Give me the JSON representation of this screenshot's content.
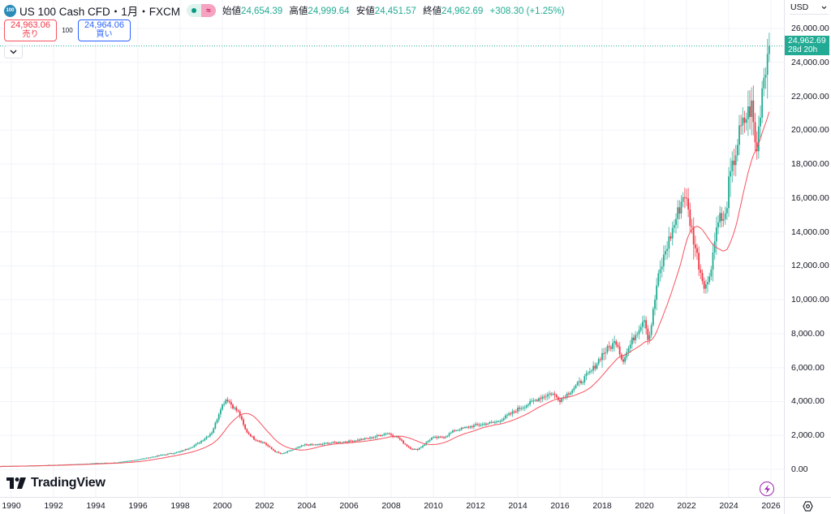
{
  "header": {
    "symbol_logo": "100",
    "title": "US 100 Cash CFD・1月・FXCM",
    "ohlc": {
      "open_label": "始値",
      "open": "24,654.39",
      "high_label": "高値",
      "high": "24,999.64",
      "low_label": "安値",
      "low": "24,451.57",
      "close_label": "終値",
      "close": "24,962.69",
      "change": "+308.30 (+1.25%)"
    },
    "status_icon_1": "market-open-dot-icon",
    "status_icon_2": "delayed-data-icon",
    "status_2_glyph": "≈"
  },
  "trade": {
    "sell_price": "24,963.06",
    "sell_label": "売り",
    "spread": "100",
    "buy_price": "24,964.06",
    "buy_label": "買い"
  },
  "price_axis": {
    "currency": "USD",
    "labels": [
      "26,000.00",
      "24,000.00",
      "22,000.00",
      "20,000.00",
      "18,000.00",
      "16,000.00",
      "14,000.00",
      "12,000.00",
      "10,000.00",
      "8,000.00",
      "6,000.00",
      "4,000.00",
      "2,000.00",
      "0.00"
    ],
    "last_price": "24,962.69",
    "countdown": "28d 20h"
  },
  "time_axis": {
    "labels": [
      "1990",
      "1992",
      "1994",
      "1996",
      "1998",
      "2000",
      "2002",
      "2004",
      "2006",
      "2008",
      "2010",
      "2012",
      "2014",
      "2016",
      "2018",
      "2020",
      "2022",
      "2024",
      "2026"
    ]
  },
  "branding": {
    "logo_text": "TradingView"
  },
  "colors": {
    "up": "#22ab94",
    "down": "#f23645",
    "ma": "#f7525f",
    "grid": "#f0f3fa",
    "last_line": "#22ab94"
  },
  "chart_data": {
    "type": "candlestick",
    "title": "US 100 Cash CFD・1月・FXCM",
    "interval": "1 month",
    "ylim": [
      -1000,
      27000
    ],
    "xlim": [
      1989.5,
      2026.6
    ],
    "yticks": [
      0,
      2000,
      4000,
      6000,
      8000,
      10000,
      12000,
      14000,
      16000,
      18000,
      20000,
      22000,
      24000,
      26000
    ],
    "xticks": [
      1990,
      1992,
      1994,
      1996,
      1998,
      2000,
      2002,
      2004,
      2006,
      2008,
      2010,
      2012,
      2014,
      2016,
      2018,
      2020,
      2022,
      2024,
      2026
    ],
    "last_value": 24962.69,
    "anchor_points": [
      [
        1989.0,
        170
      ],
      [
        1990.0,
        200
      ],
      [
        1991.0,
        220
      ],
      [
        1992.0,
        260
      ],
      [
        1993.0,
        300
      ],
      [
        1994.0,
        360
      ],
      [
        1995.0,
        400
      ],
      [
        1996.0,
        580
      ],
      [
        1997.0,
        820
      ],
      [
        1998.0,
        1050
      ],
      [
        1998.8,
        1500
      ],
      [
        1999.5,
        2200
      ],
      [
        1999.9,
        3600
      ],
      [
        2000.2,
        4200
      ],
      [
        2000.5,
        3700
      ],
      [
        2000.8,
        3300
      ],
      [
        2001.1,
        2300
      ],
      [
        2001.5,
        1800
      ],
      [
        2002.0,
        1550
      ],
      [
        2002.5,
        1050
      ],
      [
        2002.8,
        900
      ],
      [
        2003.2,
        1100
      ],
      [
        2003.9,
        1450
      ],
      [
        2004.5,
        1450
      ],
      [
        2005.0,
        1550
      ],
      [
        2006.0,
        1650
      ],
      [
        2007.0,
        1850
      ],
      [
        2007.8,
        2150
      ],
      [
        2008.3,
        1900
      ],
      [
        2008.9,
        1250
      ],
      [
        2009.2,
        1150
      ],
      [
        2009.9,
        1850
      ],
      [
        2010.5,
        1900
      ],
      [
        2011.0,
        2300
      ],
      [
        2012.0,
        2600
      ],
      [
        2013.0,
        2800
      ],
      [
        2014.0,
        3550
      ],
      [
        2015.0,
        4200
      ],
      [
        2015.6,
        4500
      ],
      [
        2016.0,
        4100
      ],
      [
        2016.7,
        4850
      ],
      [
        2017.5,
        5800
      ],
      [
        2018.0,
        6800
      ],
      [
        2018.7,
        7600
      ],
      [
        2018.95,
        6400
      ],
      [
        2019.5,
        7800
      ],
      [
        2020.0,
        9000
      ],
      [
        2020.2,
        7600
      ],
      [
        2020.6,
        11000
      ],
      [
        2021.0,
        12900
      ],
      [
        2021.5,
        14800
      ],
      [
        2021.9,
        16400
      ],
      [
        2022.3,
        13800
      ],
      [
        2022.6,
        12000
      ],
      [
        2022.8,
        11000
      ],
      [
        2023.0,
        10900
      ],
      [
        2023.5,
        15000
      ],
      [
        2023.8,
        14500
      ],
      [
        2024.0,
        16800
      ],
      [
        2024.5,
        19800
      ],
      [
        2024.9,
        21000
      ],
      [
        2025.1,
        21400
      ],
      [
        2025.3,
        18500
      ],
      [
        2025.6,
        22800
      ],
      [
        2025.9,
        24962.69
      ]
    ],
    "ma_period_months": 20,
    "series": [
      {
        "name": "Price (monthly candles)",
        "type": "candlestick"
      },
      {
        "name": "Moving Average",
        "type": "line"
      }
    ]
  }
}
